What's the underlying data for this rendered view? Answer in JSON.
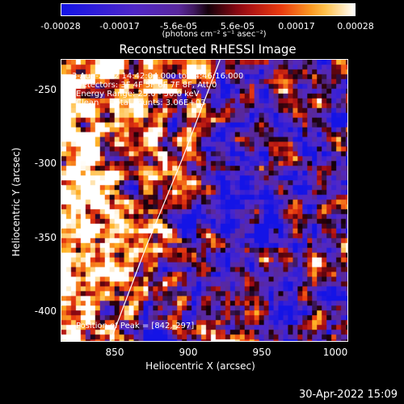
{
  "colorbar": {
    "ticks": [
      "-0.00028",
      "-0.00017",
      "-5.6e-05",
      "5.6e-05",
      "0.00017",
      "0.00028"
    ],
    "units": "(photons cm⁻² s⁻¹ asec⁻²)"
  },
  "title": "Reconstructed RHESSI Image",
  "annotations": {
    "time_range": "3-Aug-2002 14:42:04.000 to 14:46:16.000",
    "detectors": "Detectors: 3F 4F 5F 6F 7F 8F, Att 0",
    "energy": "Energy Range: 25.0 - 50.0 keV",
    "clean": "Clean     Total counts: 3.06E+03",
    "peak": "Position of Peak = [842,-297]"
  },
  "footer": {
    "timestamp": "30-Apr-2022 15:09"
  },
  "chart_data": {
    "type": "heatmap",
    "title": "Reconstructed RHESSI Image",
    "xlabel": "Heliocentric X (arcsec)",
    "ylabel": "Heliocentric Y (arcsec)",
    "xlim": [
      812,
      1008
    ],
    "ylim": [
      -420,
      -230
    ],
    "x_ticks": [
      "850",
      "900",
      "950",
      "1000"
    ],
    "y_ticks": [
      "-250",
      "-300",
      "-350",
      "-400"
    ],
    "colorbar_range": [
      -0.00028,
      0.00028
    ],
    "colormap": "blue-purple-red-yellow-white",
    "limb_curve": [
      [
        845,
        -420
      ],
      [
        870,
        -355
      ],
      [
        895,
        -295
      ],
      [
        920,
        -230
      ]
    ],
    "peak_position": [
      842,
      -297
    ]
  }
}
